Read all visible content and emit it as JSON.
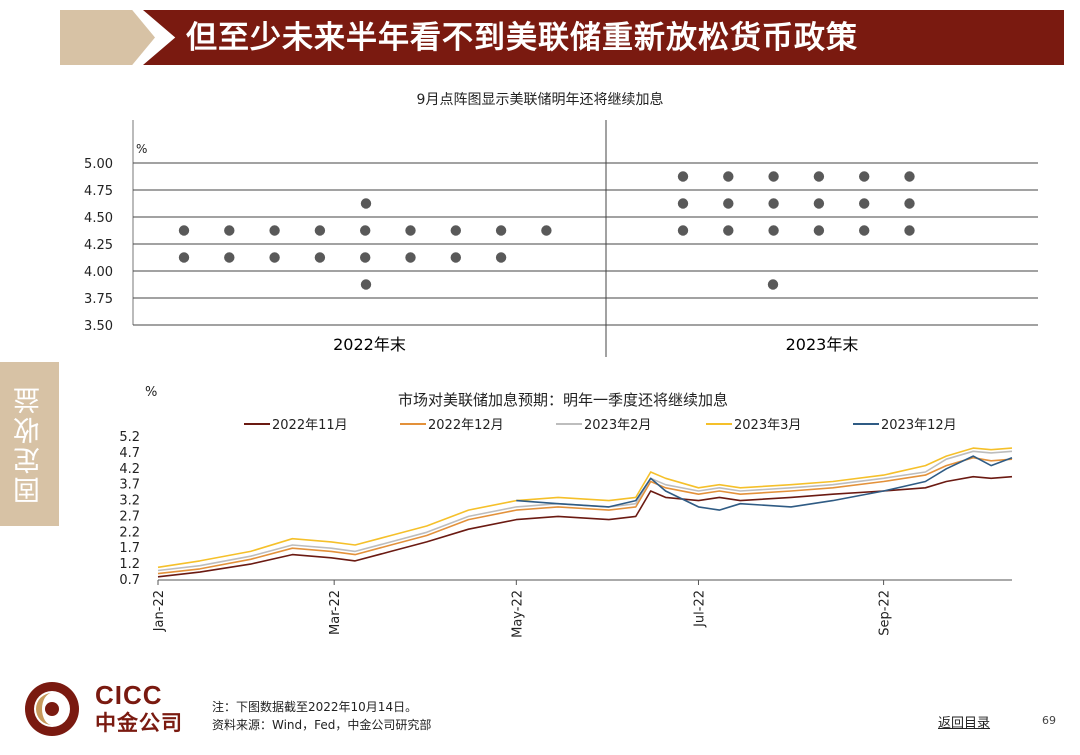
{
  "title": "但至少未来半年看不到美联储重新放松货币政策",
  "side_tab": "固定收益",
  "colors": {
    "banner": "#7a1a10",
    "accent_tan": "#d7c2a5",
    "dot": "#595959"
  },
  "chart_data": [
    {
      "type": "scatter",
      "title": "9月点阵图显示美联储明年还将继续加息",
      "ylabel": "%",
      "ylim": [
        3.5,
        5.0
      ],
      "yticks": [
        "5.00",
        "4.75",
        "4.50",
        "4.25",
        "4.00",
        "3.75",
        "3.50"
      ],
      "grid": true,
      "groups": [
        {
          "label": "2022年末",
          "dots": [
            {
              "y": 4.375,
              "count": 9
            },
            {
              "y": 4.125,
              "count": 8
            },
            {
              "y": 4.625,
              "count": 1
            },
            {
              "y": 3.875,
              "count": 1
            }
          ]
        },
        {
          "label": "2023年末",
          "dots": [
            {
              "y": 4.875,
              "count": 6
            },
            {
              "y": 4.625,
              "count": 6
            },
            {
              "y": 4.375,
              "count": 6
            },
            {
              "y": 3.875,
              "count": 1
            }
          ]
        }
      ]
    },
    {
      "type": "line",
      "title": "市场对美联储加息预期：明年一季度还将继续加息",
      "ylabel": "%",
      "ylim": [
        0.7,
        5.2
      ],
      "yticks": [
        "5.2",
        "4.7",
        "4.2",
        "3.7",
        "3.2",
        "2.7",
        "2.2",
        "1.7",
        "1.2",
        "0.7"
      ],
      "xticks": [
        "Jan-22",
        "Mar-22",
        "May-22",
        "Jul-22",
        "Sep-22"
      ],
      "x": [
        "2022-01-01",
        "2022-01-15",
        "2022-02-01",
        "2022-02-15",
        "2022-02-28",
        "2022-03-08",
        "2022-03-20",
        "2022-04-01",
        "2022-04-15",
        "2022-05-01",
        "2022-05-15",
        "2022-06-01",
        "2022-06-10",
        "2022-06-15",
        "2022-06-20",
        "2022-07-01",
        "2022-07-08",
        "2022-07-15",
        "2022-08-01",
        "2022-08-15",
        "2022-09-01",
        "2022-09-15",
        "2022-09-22",
        "2022-10-01",
        "2022-10-07",
        "2022-10-14"
      ],
      "series": [
        {
          "name": "2022年11月",
          "color": "#6b1a12",
          "values": [
            0.8,
            0.95,
            1.2,
            1.5,
            1.4,
            1.3,
            1.6,
            1.9,
            2.3,
            2.6,
            2.7,
            2.6,
            2.7,
            3.5,
            3.3,
            3.2,
            3.3,
            3.2,
            3.3,
            3.4,
            3.5,
            3.6,
            3.8,
            3.95,
            3.9,
            3.95
          ]
        },
        {
          "name": "2022年12月",
          "color": "#e3913a",
          "values": [
            0.9,
            1.05,
            1.35,
            1.7,
            1.6,
            1.5,
            1.8,
            2.1,
            2.6,
            2.9,
            3.0,
            2.9,
            3.0,
            3.8,
            3.6,
            3.4,
            3.5,
            3.4,
            3.5,
            3.6,
            3.8,
            4.0,
            4.3,
            4.55,
            4.45,
            4.5
          ]
        },
        {
          "name": "2023年2月",
          "color": "#bdbdbd",
          "values": [
            1.0,
            1.15,
            1.45,
            1.8,
            1.7,
            1.6,
            1.9,
            2.2,
            2.7,
            3.0,
            3.1,
            3.0,
            3.1,
            3.9,
            3.7,
            3.5,
            3.6,
            3.5,
            3.6,
            3.7,
            3.9,
            4.1,
            4.5,
            4.75,
            4.7,
            4.75
          ]
        },
        {
          "name": "2023年3月",
          "color": "#f5c02a",
          "values": [
            1.1,
            1.3,
            1.6,
            2.0,
            1.9,
            1.8,
            2.1,
            2.4,
            2.9,
            3.2,
            3.3,
            3.2,
            3.3,
            4.1,
            3.9,
            3.6,
            3.7,
            3.6,
            3.7,
            3.8,
            4.0,
            4.3,
            4.6,
            4.85,
            4.8,
            4.85
          ]
        },
        {
          "name": "2023年12月",
          "color": "#2f5b84",
          "values": [
            null,
            null,
            null,
            null,
            null,
            null,
            null,
            null,
            null,
            3.2,
            3.1,
            3.0,
            3.2,
            3.9,
            3.5,
            3.0,
            2.9,
            3.1,
            3.0,
            3.2,
            3.5,
            3.8,
            4.2,
            4.6,
            4.3,
            4.55
          ]
        }
      ]
    }
  ],
  "footer": {
    "note": "注：下图数据截至2022年10月14日。",
    "source": "资料来源：Wind，Fed，中金公司研究部",
    "back_link": "返回目录",
    "page": "69"
  },
  "logo": {
    "en": "CICC",
    "cn": "中金公司"
  }
}
